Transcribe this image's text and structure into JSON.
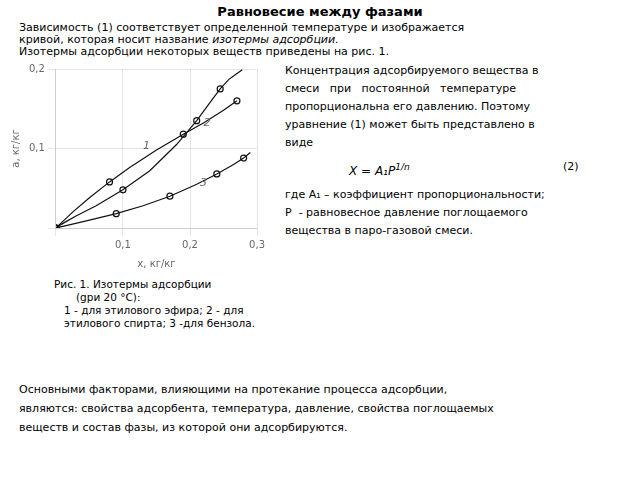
{
  "chart_data": {
    "type": "line",
    "title": "Равновесие между фазами",
    "text": {
      "intro": [
        [
          "Зависимость (1) соответствует определенной температуре и изображается"
        ],
        [
          "кривой, которая носит название ",
          "изотермы адсорбции."
        ],
        [
          "Изотермы адсорбции некоторых веществ приведены на рис. 1."
        ]
      ],
      "right": [
        "Концентрация адсорбируемого вещества в",
        "смеси   при   постоянной   температуре",
        "пропорциональна его давлению. Поэтому",
        "уравнение (1) может быть представлено в",
        "виде"
      ],
      "formula": [
        {
          "text": "X = A₁P"
        },
        {
          "text": "1/n",
          "sup": true
        }
      ],
      "formula_number": "(2)",
      "where": [
        "где A₁ – коэффициент пропорциональности;",
        "P  - равновесное давление поглощаемого",
        "вещества в паро-газовой смеси."
      ],
      "caption": [
        "Рис. 1. Изотермы адсорбции",
        "(gри 20 °C):",
        "1 - для этилового эфира; 2 - для",
        "этилового спирта; 3 -для бензола."
      ],
      "body": [
        "Основными факторами, влияющими на протекание процесса адсорбции,",
        "являются: свойства адсорбента, температура, давление, свойства поглощаемых",
        "веществ и состав фазы, из которой они адсорбируются."
      ]
    },
    "xlabel": "x, кг/кг",
    "ylabel": "a, кг/кг",
    "xlim": [
      0,
      0.3
    ],
    "ylim": [
      0,
      0.2
    ],
    "xticks": [
      {
        "value": 0.0,
        "label": null
      },
      {
        "value": 0.1,
        "label": "0,1"
      },
      {
        "value": 0.2,
        "label": "0,2"
      },
      {
        "value": 0.3,
        "label": "0,3"
      }
    ],
    "yticks": [
      {
        "value": 0.0,
        "label": null
      },
      {
        "value": 0.1,
        "label": "0,1"
      },
      {
        "value": 0.2,
        "label": "0,2"
      }
    ],
    "grid": true,
    "series": [
      {
        "type": "line",
        "marker": "none",
        "color": "#111111",
        "x": [
          0.0,
          0.01,
          0.025,
          0.05,
          0.08,
          0.11,
          0.15,
          0.19,
          0.22,
          0.25,
          0.27
        ],
        "values": [
          0.0,
          0.008,
          0.02,
          0.038,
          0.058,
          0.076,
          0.098,
          0.118,
          0.132,
          0.148,
          0.16
        ]
      },
      {
        "type": "scatter",
        "marker": "circle",
        "color": "#111111",
        "x": [
          0.0,
          0.08,
          0.19,
          0.27
        ],
        "values": [
          0.0,
          0.058,
          0.118,
          0.16
        ]
      },
      {
        "type": "line",
        "marker": "none",
        "color": "#111111",
        "x": [
          0.0,
          0.005,
          0.015,
          0.03,
          0.06,
          0.1,
          0.14,
          0.18,
          0.21,
          0.23,
          0.245,
          0.258,
          0.268,
          0.278
        ],
        "values": [
          0.0,
          0.003,
          0.008,
          0.015,
          0.028,
          0.048,
          0.072,
          0.105,
          0.135,
          0.158,
          0.175,
          0.187,
          0.193,
          0.199
        ]
      },
      {
        "type": "scatter",
        "marker": "circle",
        "color": "#111111",
        "x": [
          0.0,
          0.1,
          0.21,
          0.245
        ],
        "values": [
          0.0,
          0.048,
          0.135,
          0.175
        ]
      },
      {
        "type": "line",
        "marker": "none",
        "color": "#111111",
        "x": [
          0.0,
          0.02,
          0.05,
          0.09,
          0.13,
          0.17,
          0.21,
          0.24,
          0.265,
          0.28,
          0.29
        ],
        "values": [
          0.0,
          0.004,
          0.01,
          0.018,
          0.028,
          0.04,
          0.055,
          0.068,
          0.08,
          0.088,
          0.095
        ]
      },
      {
        "type": "scatter",
        "marker": "circle",
        "color": "#111111",
        "x": [
          0.0,
          0.09,
          0.17,
          0.24,
          0.28
        ],
        "values": [
          0.0,
          0.018,
          0.04,
          0.068,
          0.088
        ]
      }
    ],
    "annotations": [
      {
        "text": "1",
        "x": 0.13,
        "y": 0.1
      },
      {
        "text": "2",
        "x": 0.22,
        "y": 0.128
      },
      {
        "text": "3",
        "x": 0.215,
        "y": 0.053
      }
    ]
  }
}
